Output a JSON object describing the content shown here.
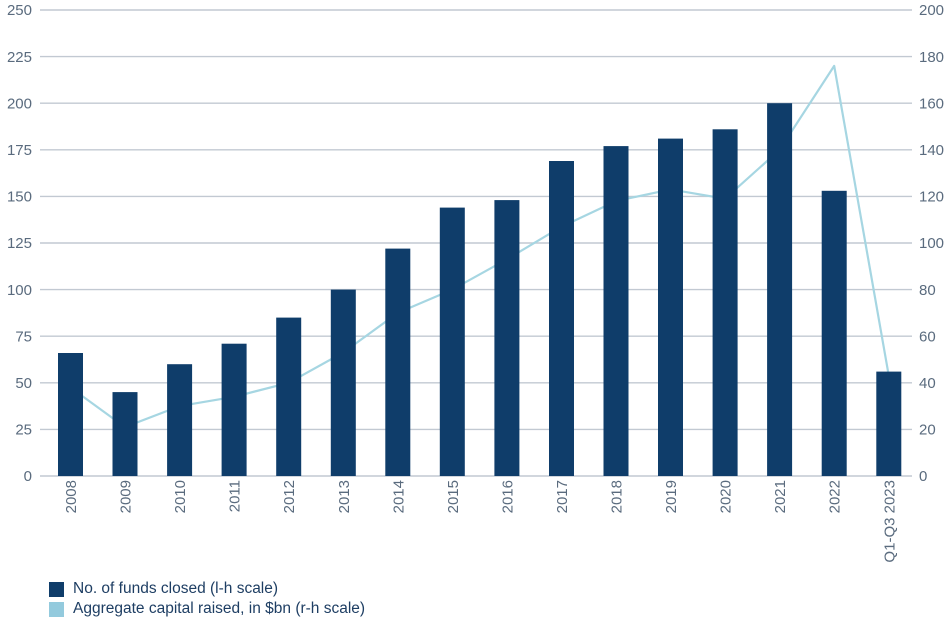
{
  "chart_data": {
    "type": "combo-bar-line",
    "categories": [
      "2008",
      "2009",
      "2010",
      "2011",
      "2012",
      "2013",
      "2014",
      "2015",
      "2016",
      "2017",
      "2018",
      "2019",
      "2020",
      "2021",
      "2022",
      "Q1-Q3 2023"
    ],
    "series": [
      {
        "name": "No. of funds closed (l-h scale)",
        "type": "bar",
        "axis": "left",
        "values": [
          66,
          45,
          60,
          71,
          85,
          100,
          122,
          144,
          148,
          169,
          177,
          181,
          186,
          200,
          153,
          56
        ]
      },
      {
        "name": "Aggregate capital raised, in $bn (r-h scale)",
        "type": "line",
        "axis": "right",
        "values": [
          38,
          21,
          30,
          34,
          40,
          53,
          70,
          80,
          93,
          107,
          118,
          123,
          119,
          140,
          176,
          43
        ]
      }
    ],
    "axes": {
      "left": {
        "min": 0,
        "max": 250,
        "step": 25,
        "tick_labels": [
          "0",
          "25",
          "50",
          "75",
          "100",
          "125",
          "150",
          "175",
          "200",
          "225",
          "250"
        ]
      },
      "right": {
        "min": 0,
        "max": 200,
        "step": 20,
        "tick_labels": [
          "0",
          "20",
          "40",
          "60",
          "80",
          "100",
          "120",
          "140",
          "160",
          "180",
          "200"
        ]
      }
    },
    "grid": true,
    "legend_position": "bottom-left",
    "x_tick_rotation": -90
  },
  "legend": {
    "items": [
      {
        "label": "No. of funds closed (l-h scale)"
      },
      {
        "label": "Aggregate capital raised, in $bn (r-h scale)"
      }
    ]
  },
  "colors": {
    "bar": "#0f3d6a",
    "line": "#a6d6e2",
    "legend_line_swatch": "#93cadd",
    "gridline": "#c2c9d2",
    "axis_text": "#5a6b7e",
    "legend_text": "#1e3e63",
    "background": "#ffffff"
  }
}
